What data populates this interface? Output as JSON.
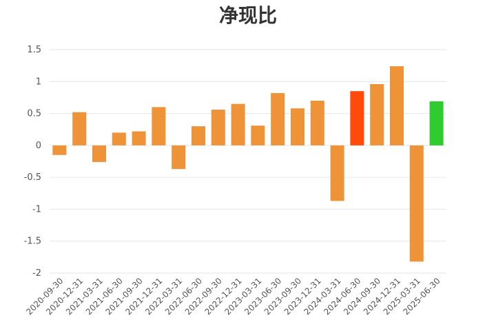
{
  "chart_data": {
    "type": "bar",
    "title": "净现比",
    "xlabel": "",
    "ylabel": "",
    "ylim": [
      -2,
      1.5
    ],
    "yticks": [
      1.5,
      1,
      0.5,
      0,
      -0.5,
      -1,
      -1.5,
      -2
    ],
    "ytick_labels": [
      "1.5",
      "1",
      "0.5",
      "0",
      "-0.5",
      "-1",
      "-1.5",
      "-2"
    ],
    "grid": true,
    "categories": [
      "2020-09-30",
      "2020-12-31",
      "2021-03-31",
      "2021-06-30",
      "2021-09-30",
      "2021-12-31",
      "2022-03-31",
      "2022-06-30",
      "2022-09-30",
      "2022-12-31",
      "2023-03-31",
      "2023-06-30",
      "2023-09-30",
      "2023-12-31",
      "2024-03-31",
      "2024-06-30",
      "2024-09-30",
      "2024-12-31",
      "2025-03-31",
      "2025-06-30"
    ],
    "values": [
      -0.15,
      0.52,
      -0.26,
      0.2,
      0.22,
      0.6,
      -0.37,
      0.3,
      0.56,
      0.65,
      0.31,
      0.82,
      0.58,
      0.7,
      -0.87,
      0.85,
      0.96,
      1.24,
      -1.82,
      0.69
    ],
    "bar_colors": [
      "#ee9338",
      "#ee9338",
      "#ee9338",
      "#ee9338",
      "#ee9338",
      "#ee9338",
      "#ee9338",
      "#ee9338",
      "#ee9338",
      "#ee9338",
      "#ee9338",
      "#ee9338",
      "#ee9338",
      "#ee9338",
      "#ee9338",
      "#ff4a0a",
      "#ee9338",
      "#ee9338",
      "#ee9338",
      "#2ecc2e"
    ]
  }
}
